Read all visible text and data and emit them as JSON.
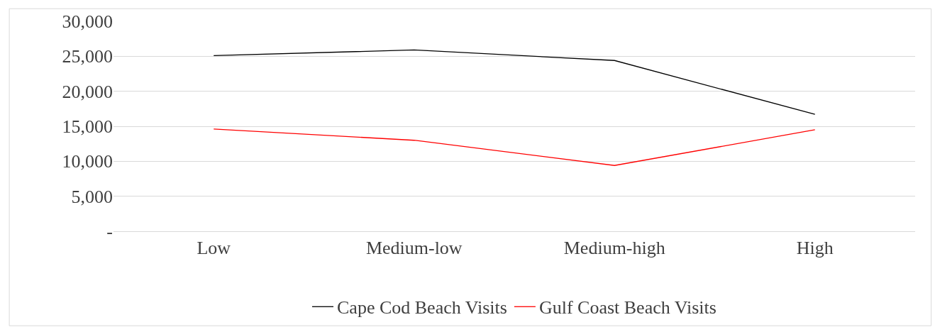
{
  "chart_data": {
    "type": "line",
    "categories": [
      "Low",
      "Medium-low",
      "Medium-high",
      "High"
    ],
    "series": [
      {
        "name": "Cape Cod Beach Visits",
        "color": "#000000",
        "values": [
          25100,
          25900,
          24400,
          16700
        ]
      },
      {
        "name": "Gulf Coast Beach Visits",
        "color": "#ff0000",
        "values": [
          14600,
          13000,
          9400,
          14500
        ]
      }
    ],
    "ylim": [
      0,
      30000
    ],
    "yticks": [
      {
        "value": 0,
        "label": "-"
      },
      {
        "value": 5000,
        "label": "5,000"
      },
      {
        "value": 10000,
        "label": "10,000"
      },
      {
        "value": 15000,
        "label": "15,000"
      },
      {
        "value": 20000,
        "label": "20,000"
      },
      {
        "value": 25000,
        "label": "25,000"
      },
      {
        "value": 30000,
        "label": "30,000"
      }
    ],
    "grid": "y",
    "legend": "bottom",
    "marker": "none",
    "line_style": "solid"
  }
}
